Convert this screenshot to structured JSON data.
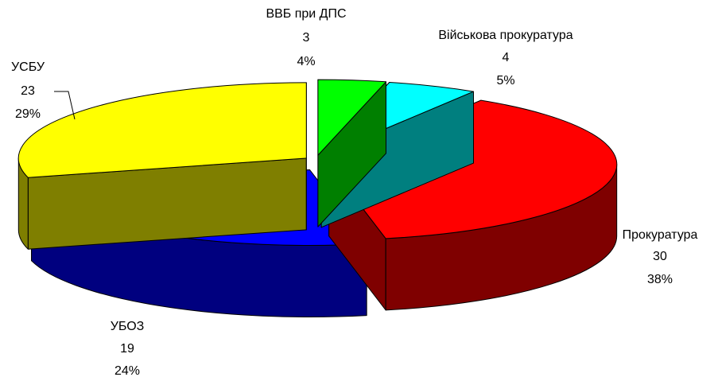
{
  "chart_data": {
    "type": "pie3d",
    "categories": [
      "ВВБ при ДПС",
      "Військова прокуратура",
      "Прокуратура",
      "УБОЗ",
      "УСБУ"
    ],
    "values": [
      3,
      4,
      30,
      19,
      23
    ],
    "percent_labels": [
      "4%",
      "5%",
      "38%",
      "24%",
      "29%"
    ],
    "colors": [
      "#00ff00",
      "#00ffff",
      "#ff0000",
      "#0000ff",
      "#ffff00"
    ]
  }
}
